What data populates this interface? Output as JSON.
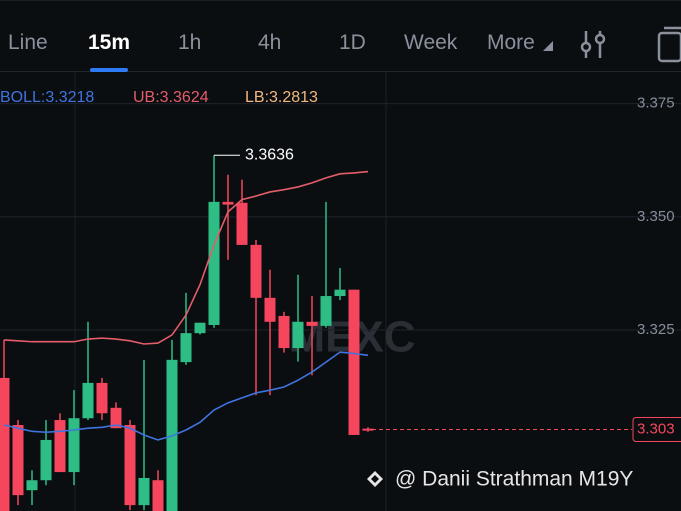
{
  "tabs": [
    "Line",
    "15m",
    "1h",
    "4h",
    "1D",
    "Week",
    "More"
  ],
  "chart_data": {
    "type": "candlestick",
    "indicator_labels": [
      {
        "text": "BOLL:3.3218",
        "color": "#3f74e0"
      },
      {
        "text": "UB:3.3624",
        "color": "#e35d6a"
      },
      {
        "text": "LB:3.2813",
        "color": "#f2b880"
      }
    ],
    "open": [
      3.3144,
      3.304,
      3.2896,
      3.2918,
      3.3051,
      3.2936,
      3.3055,
      3.3133,
      3.3078,
      3.304,
      3.2863,
      3.2918,
      3.285,
      3.3179,
      3.3243,
      3.3261,
      3.3533,
      3.3531,
      3.3438,
      3.3321,
      3.3281,
      3.321,
      3.3268,
      3.3259,
      3.3325,
      3.3339,
      3.3032
    ],
    "high": [
      3.3228,
      3.3051,
      3.294,
      3.3051,
      3.3066,
      3.3117,
      3.3268,
      3.3144,
      3.309,
      3.3051,
      3.3184,
      3.294,
      3.3228,
      3.3332,
      3.3266,
      3.3636,
      3.3593,
      3.3582,
      3.3449,
      3.3383,
      3.329,
      3.3372,
      3.3325,
      3.3533,
      3.3387,
      3.3339,
      3.3035
    ],
    "low": [
      3.285,
      3.2863,
      3.2863,
      3.2907,
      3.2936,
      3.2907,
      3.3051,
      3.3051,
      3.3033,
      3.2852,
      3.2852,
      3.285,
      3.285,
      3.3173,
      3.324,
      3.3255,
      3.3405,
      3.3438,
      3.3106,
      3.3106,
      3.32,
      3.318,
      3.315,
      3.3255,
      3.3316,
      3.3018,
      3.3025
    ],
    "close": [
      3.285,
      3.2885,
      3.2918,
      3.3007,
      3.2936,
      3.3055,
      3.3133,
      3.3066,
      3.3033,
      3.2863,
      3.2923,
      3.285,
      3.3184,
      3.3243,
      3.3266,
      3.3533,
      3.3527,
      3.3438,
      3.3321,
      3.3268,
      3.321,
      3.3268,
      3.3259,
      3.3325,
      3.3339,
      3.3018,
      3.303
    ],
    "up_color": "#2ebd85",
    "down_color": "#f6465d",
    "series": [
      {
        "color": "#e35d6a",
        "values": [
          3.3228,
          3.3226,
          3.3224,
          3.3224,
          3.3224,
          3.3224,
          3.323,
          3.3232,
          3.323,
          3.3226,
          3.3219,
          3.3221,
          3.3239,
          3.3283,
          3.335,
          3.3438,
          3.3511,
          3.3538,
          3.3546,
          3.3555,
          3.356,
          3.3566,
          3.3575,
          3.3586,
          3.3595,
          3.3597,
          3.36
        ]
      },
      {
        "color": "#3f74e0",
        "values": [
          3.304,
          3.3033,
          3.3026,
          3.3024,
          3.3026,
          3.3029,
          3.3033,
          3.3035,
          3.304,
          3.3033,
          3.3018,
          3.3007,
          3.3016,
          3.3029,
          3.3046,
          3.3073,
          3.3089,
          3.31,
          3.3111,
          3.3117,
          3.3124,
          3.3139,
          3.3157,
          3.3179,
          3.3201,
          3.3198,
          3.3194
        ]
      }
    ],
    "ylim": [
      3.285,
      3.382
    ],
    "yticks": [
      3.325,
      {
        "value": 3.35,
        "label": "3.350"
      },
      3.375
    ],
    "grid": true,
    "high_label": 3.3636,
    "last_price": 3.303,
    "watermark": "MEXC",
    "footer": "@ Danii Strathman M19Y"
  }
}
